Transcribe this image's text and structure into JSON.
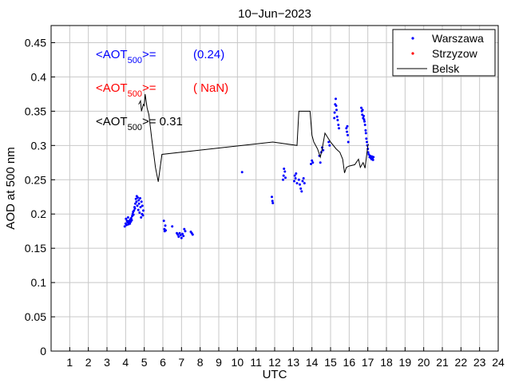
{
  "chart_data": {
    "type": "scatter",
    "title": "10−Jun−2023",
    "xlabel": "UTC",
    "ylabel": "AOD at 500 nm",
    "xlim": [
      0,
      24
    ],
    "ylim": [
      0,
      0.475
    ],
    "x_ticks": [
      "1",
      "2",
      "3",
      "4",
      "5",
      "6",
      "7",
      "8",
      "9",
      "10",
      "11",
      "12",
      "13",
      "14",
      "15",
      "16",
      "17",
      "18",
      "19",
      "20",
      "21",
      "22",
      "23",
      "24"
    ],
    "y_ticks": [
      "0",
      "0.05",
      "0.1",
      "0.15",
      "0.2",
      "0.25",
      "0.3",
      "0.35",
      "0.4",
      "0.45"
    ],
    "grid": true,
    "legend_position": "top-right",
    "colors": {
      "Warszawa": "#0000ff",
      "Strzyzow": "#ff0000",
      "Belsk": "#000000"
    },
    "annotations": [
      {
        "prefix": "<AOT",
        "subscript": "500",
        "suffix": ">=",
        "value": "(0.24)",
        "color": "#0000ff"
      },
      {
        "prefix": "<AOT",
        "subscript": "500",
        "suffix": ">=",
        "value": "( NaN)",
        "color": "#ff0000"
      },
      {
        "prefix": "<AOT",
        "subscript": "500",
        "suffix": ">= 0.31",
        "value": "",
        "color": "#000000"
      }
    ],
    "series": [
      {
        "name": "Warszawa",
        "style": "points",
        "points": [
          [
            3.95,
            0.182
          ],
          [
            4.0,
            0.186
          ],
          [
            4.02,
            0.193
          ],
          [
            4.05,
            0.184
          ],
          [
            4.08,
            0.19
          ],
          [
            4.1,
            0.188
          ],
          [
            4.13,
            0.195
          ],
          [
            4.15,
            0.185
          ],
          [
            4.18,
            0.187
          ],
          [
            4.2,
            0.19
          ],
          [
            4.23,
            0.186
          ],
          [
            4.25,
            0.192
          ],
          [
            4.28,
            0.189
          ],
          [
            4.3,
            0.194
          ],
          [
            4.33,
            0.191
          ],
          [
            4.35,
            0.197
          ],
          [
            4.38,
            0.2
          ],
          [
            4.4,
            0.203
          ],
          [
            4.42,
            0.199
          ],
          [
            4.45,
            0.205
          ],
          [
            4.48,
            0.21
          ],
          [
            4.5,
            0.208
          ],
          [
            4.52,
            0.215
          ],
          [
            4.55,
            0.222
          ],
          [
            4.58,
            0.218
          ],
          [
            4.6,
            0.226
          ],
          [
            4.63,
            0.212
          ],
          [
            4.65,
            0.224
          ],
          [
            4.68,
            0.206
          ],
          [
            4.7,
            0.22
          ],
          [
            4.72,
            0.215
          ],
          [
            4.75,
            0.202
          ],
          [
            4.78,
            0.223
          ],
          [
            4.8,
            0.21
          ],
          [
            4.83,
            0.195
          ],
          [
            4.85,
            0.218
          ],
          [
            4.88,
            0.2
          ],
          [
            4.9,
            0.212
          ],
          [
            4.93,
            0.198
          ],
          [
            4.95,
            0.205
          ],
          [
            6.05,
            0.19
          ],
          [
            6.08,
            0.178
          ],
          [
            6.1,
            0.175
          ],
          [
            6.13,
            0.183
          ],
          [
            6.15,
            0.176
          ],
          [
            6.5,
            0.182
          ],
          [
            6.75,
            0.172
          ],
          [
            6.8,
            0.17
          ],
          [
            6.85,
            0.167
          ],
          [
            6.9,
            0.172
          ],
          [
            6.95,
            0.169
          ],
          [
            7.0,
            0.165
          ],
          [
            7.05,
            0.171
          ],
          [
            7.1,
            0.168
          ],
          [
            7.15,
            0.178
          ],
          [
            7.2,
            0.175
          ],
          [
            7.5,
            0.174
          ],
          [
            7.55,
            0.172
          ],
          [
            7.6,
            0.17
          ],
          [
            10.25,
            0.261
          ],
          [
            11.85,
            0.225
          ],
          [
            11.88,
            0.219
          ],
          [
            11.9,
            0.216
          ],
          [
            12.45,
            0.25
          ],
          [
            12.48,
            0.256
          ],
          [
            12.5,
            0.266
          ],
          [
            12.55,
            0.262
          ],
          [
            12.58,
            0.253
          ],
          [
            13.05,
            0.248
          ],
          [
            13.08,
            0.256
          ],
          [
            13.12,
            0.252
          ],
          [
            13.15,
            0.259
          ],
          [
            13.2,
            0.245
          ],
          [
            13.3,
            0.25
          ],
          [
            13.35,
            0.243
          ],
          [
            13.4,
            0.237
          ],
          [
            13.45,
            0.233
          ],
          [
            13.5,
            0.248
          ],
          [
            13.55,
            0.252
          ],
          [
            13.6,
            0.245
          ],
          [
            13.95,
            0.273
          ],
          [
            14.0,
            0.278
          ],
          [
            14.05,
            0.275
          ],
          [
            14.4,
            0.285
          ],
          [
            14.45,
            0.275
          ],
          [
            14.5,
            0.29
          ],
          [
            14.55,
            0.297
          ],
          [
            14.6,
            0.293
          ],
          [
            14.9,
            0.305
          ],
          [
            14.95,
            0.3
          ],
          [
            15.2,
            0.34
          ],
          [
            15.22,
            0.348
          ],
          [
            15.25,
            0.36
          ],
          [
            15.28,
            0.368
          ],
          [
            15.3,
            0.358
          ],
          [
            15.32,
            0.352
          ],
          [
            15.35,
            0.342
          ],
          [
            15.38,
            0.337
          ],
          [
            15.42,
            0.33
          ],
          [
            15.45,
            0.325
          ],
          [
            15.85,
            0.325
          ],
          [
            15.88,
            0.32
          ],
          [
            15.9,
            0.328
          ],
          [
            15.92,
            0.315
          ],
          [
            15.95,
            0.305
          ],
          [
            16.65,
            0.355
          ],
          [
            16.68,
            0.35
          ],
          [
            16.7,
            0.345
          ],
          [
            16.72,
            0.352
          ],
          [
            16.75,
            0.34
          ],
          [
            16.78,
            0.343
          ],
          [
            16.8,
            0.338
          ],
          [
            16.82,
            0.335
          ],
          [
            16.85,
            0.33
          ],
          [
            16.88,
            0.322
          ],
          [
            16.9,
            0.318
          ],
          [
            16.92,
            0.31
          ],
          [
            16.95,
            0.305
          ],
          [
            16.97,
            0.3
          ],
          [
            17.0,
            0.295
          ],
          [
            17.02,
            0.29
          ],
          [
            17.05,
            0.287
          ],
          [
            17.1,
            0.283
          ],
          [
            17.12,
            0.285
          ],
          [
            17.15,
            0.282
          ],
          [
            17.2,
            0.28
          ],
          [
            17.22,
            0.284
          ],
          [
            17.25,
            0.281
          ],
          [
            17.28,
            0.279
          ],
          [
            17.3,
            0.283
          ]
        ]
      },
      {
        "name": "Strzyzow",
        "style": "points",
        "points": []
      },
      {
        "name": "Belsk",
        "style": "line",
        "points": [
          [
            4.7,
            0.36
          ],
          [
            4.8,
            0.365
          ],
          [
            4.85,
            0.35
          ],
          [
            4.95,
            0.36
          ],
          [
            5.0,
            0.358
          ],
          [
            5.05,
            0.375
          ],
          [
            5.15,
            0.355
          ],
          [
            5.25,
            0.345
          ],
          [
            5.4,
            0.31
          ],
          [
            5.5,
            0.29
          ],
          [
            5.6,
            0.268
          ],
          [
            5.75,
            0.247
          ],
          [
            5.95,
            0.287
          ],
          [
            11.9,
            0.305
          ],
          [
            13.2,
            0.3
          ],
          [
            13.3,
            0.35
          ],
          [
            13.9,
            0.35
          ],
          [
            14.0,
            0.315
          ],
          [
            14.1,
            0.305
          ],
          [
            14.3,
            0.295
          ],
          [
            14.45,
            0.283
          ],
          [
            14.55,
            0.295
          ],
          [
            14.7,
            0.318
          ],
          [
            15.0,
            0.305
          ],
          [
            15.3,
            0.295
          ],
          [
            15.5,
            0.29
          ],
          [
            15.65,
            0.28
          ],
          [
            15.75,
            0.26
          ],
          [
            15.85,
            0.268
          ],
          [
            16.0,
            0.27
          ],
          [
            16.3,
            0.272
          ],
          [
            16.5,
            0.28
          ],
          [
            16.6,
            0.268
          ],
          [
            16.75,
            0.275
          ],
          [
            16.85,
            0.267
          ],
          [
            17.0,
            0.3
          ],
          [
            17.05,
            0.302
          ]
        ]
      }
    ]
  }
}
